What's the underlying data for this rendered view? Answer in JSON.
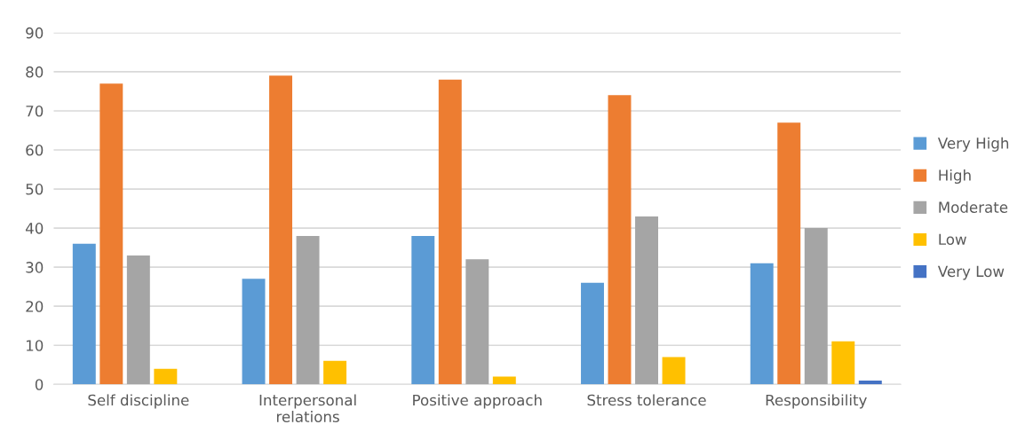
{
  "chart_data": {
    "type": "bar",
    "categories": [
      "Self discipline",
      "Interpersonal\nrelations",
      "Positive approach",
      "Stress tolerance",
      "Responsibility"
    ],
    "series": [
      {
        "name": "Very High",
        "color": "#5b9bd5",
        "values": [
          36,
          27,
          38,
          26,
          31
        ]
      },
      {
        "name": "High",
        "color": "#ed7d31",
        "values": [
          77,
          79,
          78,
          74,
          67
        ]
      },
      {
        "name": "Moderate",
        "color": "#a5a5a5",
        "values": [
          33,
          38,
          32,
          43,
          40
        ]
      },
      {
        "name": "Low",
        "color": "#ffc000",
        "values": [
          4,
          6,
          2,
          7,
          11
        ]
      },
      {
        "name": "Very Low",
        "color": "#4472c4",
        "values": [
          0,
          0,
          0,
          0,
          1
        ]
      }
    ],
    "ylim": [
      0,
      90
    ],
    "yticks": [
      0,
      10,
      20,
      30,
      40,
      50,
      60,
      70,
      80,
      90
    ],
    "grid": "y",
    "legend": "right"
  }
}
